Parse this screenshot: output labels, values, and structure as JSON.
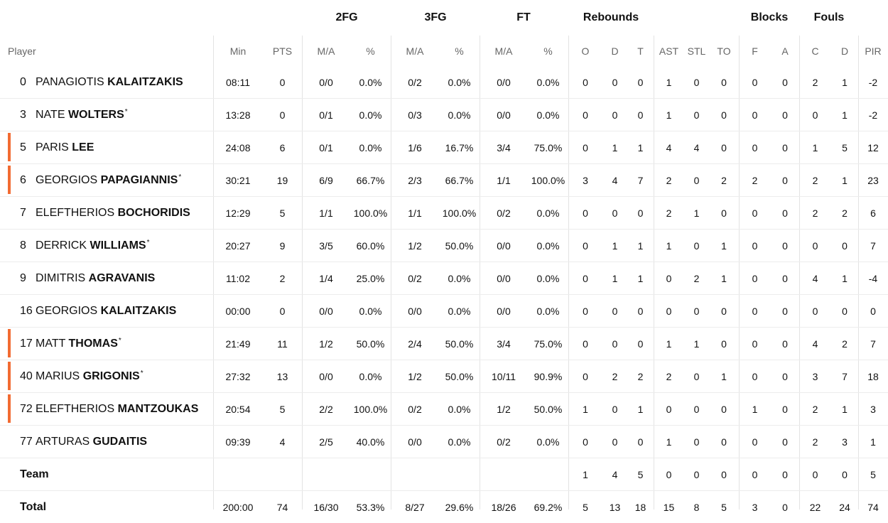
{
  "groups": {
    "fg2": "2FG",
    "fg3": "3FG",
    "ft": "FT",
    "rebounds": "Rebounds",
    "blocks": "Blocks",
    "fouls": "Fouls"
  },
  "headers": {
    "player": "Player",
    "min": "Min",
    "pts": "PTS",
    "fg2_ma": "M/A",
    "fg2_pct": "%",
    "fg3_ma": "M/A",
    "fg3_pct": "%",
    "ft_ma": "M/A",
    "ft_pct": "%",
    "reb_o": "O",
    "reb_d": "D",
    "reb_t": "T",
    "ast": "AST",
    "stl": "STL",
    "to": "TO",
    "blk_f": "F",
    "blk_a": "A",
    "foul_c": "C",
    "foul_d": "D",
    "pir": "PIR"
  },
  "accent_color": "#f26b32",
  "players": [
    {
      "num": "0",
      "first": "PANAGIOTIS",
      "last": "KALAITZAKIS",
      "star": "",
      "starter": false,
      "min": "08:11",
      "pts": "0",
      "fg2_ma": "0/0",
      "fg2_pct": "0.0%",
      "fg3_ma": "0/2",
      "fg3_pct": "0.0%",
      "ft_ma": "0/0",
      "ft_pct": "0.0%",
      "o": "0",
      "d": "0",
      "t": "0",
      "ast": "1",
      "stl": "0",
      "to": "0",
      "bf": "0",
      "ba": "0",
      "fc": "2",
      "fd": "1",
      "pir": "-2"
    },
    {
      "num": "3",
      "first": "NATE",
      "last": "WOLTERS",
      "star": "*",
      "starter": false,
      "min": "13:28",
      "pts": "0",
      "fg2_ma": "0/1",
      "fg2_pct": "0.0%",
      "fg3_ma": "0/3",
      "fg3_pct": "0.0%",
      "ft_ma": "0/0",
      "ft_pct": "0.0%",
      "o": "0",
      "d": "0",
      "t": "0",
      "ast": "1",
      "stl": "0",
      "to": "0",
      "bf": "0",
      "ba": "0",
      "fc": "0",
      "fd": "1",
      "pir": "-2"
    },
    {
      "num": "5",
      "first": "PARIS",
      "last": "LEE",
      "star": "",
      "starter": true,
      "min": "24:08",
      "pts": "6",
      "fg2_ma": "0/1",
      "fg2_pct": "0.0%",
      "fg3_ma": "1/6",
      "fg3_pct": "16.7%",
      "ft_ma": "3/4",
      "ft_pct": "75.0%",
      "o": "0",
      "d": "1",
      "t": "1",
      "ast": "4",
      "stl": "4",
      "to": "0",
      "bf": "0",
      "ba": "0",
      "fc": "1",
      "fd": "5",
      "pir": "12"
    },
    {
      "num": "6",
      "first": "GEORGIOS",
      "last": "PAPAGIANNIS",
      "star": "*",
      "starter": true,
      "min": "30:21",
      "pts": "19",
      "fg2_ma": "6/9",
      "fg2_pct": "66.7%",
      "fg3_ma": "2/3",
      "fg3_pct": "66.7%",
      "ft_ma": "1/1",
      "ft_pct": "100.0%",
      "o": "3",
      "d": "4",
      "t": "7",
      "ast": "2",
      "stl": "0",
      "to": "2",
      "bf": "2",
      "ba": "0",
      "fc": "2",
      "fd": "1",
      "pir": "23"
    },
    {
      "num": "7",
      "first": "ELEFTHERIOS",
      "last": "BOCHORIDIS",
      "star": "",
      "starter": false,
      "min": "12:29",
      "pts": "5",
      "fg2_ma": "1/1",
      "fg2_pct": "100.0%",
      "fg3_ma": "1/1",
      "fg3_pct": "100.0%",
      "ft_ma": "0/2",
      "ft_pct": "0.0%",
      "o": "0",
      "d": "0",
      "t": "0",
      "ast": "2",
      "stl": "1",
      "to": "0",
      "bf": "0",
      "ba": "0",
      "fc": "2",
      "fd": "2",
      "pir": "6"
    },
    {
      "num": "8",
      "first": "DERRICK",
      "last": "WILLIAMS",
      "star": "*",
      "starter": false,
      "min": "20:27",
      "pts": "9",
      "fg2_ma": "3/5",
      "fg2_pct": "60.0%",
      "fg3_ma": "1/2",
      "fg3_pct": "50.0%",
      "ft_ma": "0/0",
      "ft_pct": "0.0%",
      "o": "0",
      "d": "1",
      "t": "1",
      "ast": "1",
      "stl": "0",
      "to": "1",
      "bf": "0",
      "ba": "0",
      "fc": "0",
      "fd": "0",
      "pir": "7"
    },
    {
      "num": "9",
      "first": "DIMITRIS",
      "last": "AGRAVANIS",
      "star": "",
      "starter": false,
      "min": "11:02",
      "pts": "2",
      "fg2_ma": "1/4",
      "fg2_pct": "25.0%",
      "fg3_ma": "0/2",
      "fg3_pct": "0.0%",
      "ft_ma": "0/0",
      "ft_pct": "0.0%",
      "o": "0",
      "d": "1",
      "t": "1",
      "ast": "0",
      "stl": "2",
      "to": "1",
      "bf": "0",
      "ba": "0",
      "fc": "4",
      "fd": "1",
      "pir": "-4"
    },
    {
      "num": "16",
      "first": "GEORGIOS",
      "last": "KALAITZAKIS",
      "star": "",
      "starter": false,
      "min": "00:00",
      "pts": "0",
      "fg2_ma": "0/0",
      "fg2_pct": "0.0%",
      "fg3_ma": "0/0",
      "fg3_pct": "0.0%",
      "ft_ma": "0/0",
      "ft_pct": "0.0%",
      "o": "0",
      "d": "0",
      "t": "0",
      "ast": "0",
      "stl": "0",
      "to": "0",
      "bf": "0",
      "ba": "0",
      "fc": "0",
      "fd": "0",
      "pir": "0"
    },
    {
      "num": "17",
      "first": "MATT",
      "last": "THOMAS",
      "star": "*",
      "starter": true,
      "min": "21:49",
      "pts": "11",
      "fg2_ma": "1/2",
      "fg2_pct": "50.0%",
      "fg3_ma": "2/4",
      "fg3_pct": "50.0%",
      "ft_ma": "3/4",
      "ft_pct": "75.0%",
      "o": "0",
      "d": "0",
      "t": "0",
      "ast": "1",
      "stl": "1",
      "to": "0",
      "bf": "0",
      "ba": "0",
      "fc": "4",
      "fd": "2",
      "pir": "7"
    },
    {
      "num": "40",
      "first": "MARIUS",
      "last": "GRIGONIS",
      "star": "*",
      "starter": true,
      "min": "27:32",
      "pts": "13",
      "fg2_ma": "0/0",
      "fg2_pct": "0.0%",
      "fg3_ma": "1/2",
      "fg3_pct": "50.0%",
      "ft_ma": "10/11",
      "ft_pct": "90.9%",
      "o": "0",
      "d": "2",
      "t": "2",
      "ast": "2",
      "stl": "0",
      "to": "1",
      "bf": "0",
      "ba": "0",
      "fc": "3",
      "fd": "7",
      "pir": "18"
    },
    {
      "num": "72",
      "first": "ELEFTHERIOS",
      "last": "MANTZOUKAS",
      "star": "",
      "starter": true,
      "min": "20:54",
      "pts": "5",
      "fg2_ma": "2/2",
      "fg2_pct": "100.0%",
      "fg3_ma": "0/2",
      "fg3_pct": "0.0%",
      "ft_ma": "1/2",
      "ft_pct": "50.0%",
      "o": "1",
      "d": "0",
      "t": "1",
      "ast": "0",
      "stl": "0",
      "to": "0",
      "bf": "1",
      "ba": "0",
      "fc": "2",
      "fd": "1",
      "pir": "3"
    },
    {
      "num": "77",
      "first": "ARTURAS",
      "last": "GUDAITIS",
      "star": "",
      "starter": false,
      "min": "09:39",
      "pts": "4",
      "fg2_ma": "2/5",
      "fg2_pct": "40.0%",
      "fg3_ma": "0/0",
      "fg3_pct": "0.0%",
      "ft_ma": "0/2",
      "ft_pct": "0.0%",
      "o": "0",
      "d": "0",
      "t": "0",
      "ast": "1",
      "stl": "0",
      "to": "0",
      "bf": "0",
      "ba": "0",
      "fc": "2",
      "fd": "3",
      "pir": "1"
    }
  ],
  "team": {
    "label": "Team",
    "min": "",
    "pts": "",
    "fg2_ma": "",
    "fg2_pct": "",
    "fg3_ma": "",
    "fg3_pct": "",
    "ft_ma": "",
    "ft_pct": "",
    "o": "1",
    "d": "4",
    "t": "5",
    "ast": "0",
    "stl": "0",
    "to": "0",
    "bf": "0",
    "ba": "0",
    "fc": "0",
    "fd": "0",
    "pir": "5"
  },
  "total": {
    "label": "Total",
    "min": "200:00",
    "pts": "74",
    "fg2_ma": "16/30",
    "fg2_pct": "53.3%",
    "fg3_ma": "8/27",
    "fg3_pct": "29.6%",
    "ft_ma": "18/26",
    "ft_pct": "69.2%",
    "o": "5",
    "d": "13",
    "t": "18",
    "ast": "15",
    "stl": "8",
    "to": "5",
    "bf": "3",
    "ba": "0",
    "fc": "22",
    "fd": "24",
    "pir": "74"
  }
}
